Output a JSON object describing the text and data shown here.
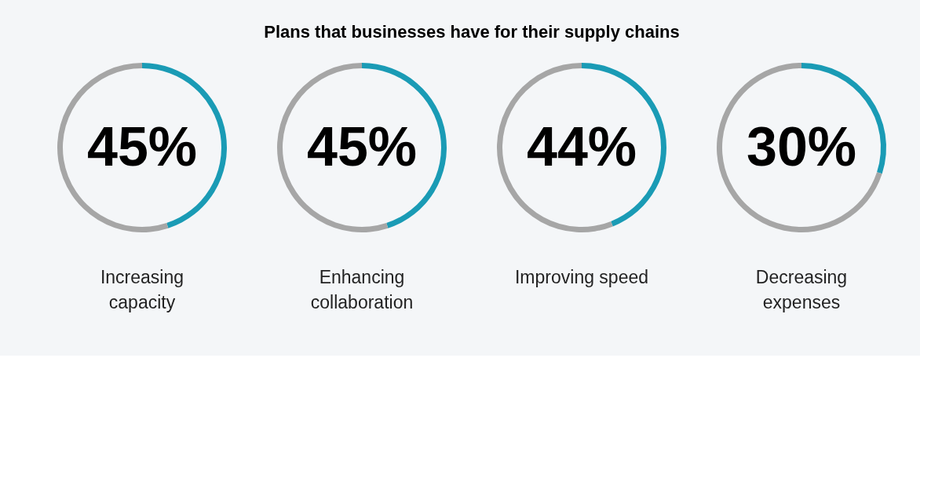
{
  "chart_data": [
    {
      "type": "donut",
      "title": "Plans that businesses have for their supply chains",
      "categories": [
        null,
        null
      ],
      "values": [
        45,
        55
      ],
      "colors": [
        "#1a9bb5",
        "#a6a6a6"
      ],
      "value_labels": [
        "45%",
        null
      ],
      "xlabel": "Increasing\ncapacity"
    },
    {
      "type": "donut",
      "categories": [
        null,
        null
      ],
      "values": [
        45,
        55
      ],
      "colors": [
        "#1a9bb5",
        "#a6a6a6"
      ],
      "value_labels": [
        "45%",
        null
      ],
      "xlabel": "Enhancing\ncollaboration"
    },
    {
      "type": "donut",
      "categories": [
        null,
        null
      ],
      "values": [
        44,
        56
      ],
      "colors": [
        "#1a9bb5",
        "#a6a6a6"
      ],
      "value_labels": [
        "44%",
        null
      ],
      "xlabel": "Improving speed"
    },
    {
      "type": "donut",
      "categories": [
        null,
        null
      ],
      "values": [
        30,
        70
      ],
      "colors": [
        "#1a9bb5",
        "#a6a6a6"
      ],
      "value_labels": [
        "30%",
        null
      ],
      "xlabel": "Decreasing\nexpenses"
    }
  ]
}
